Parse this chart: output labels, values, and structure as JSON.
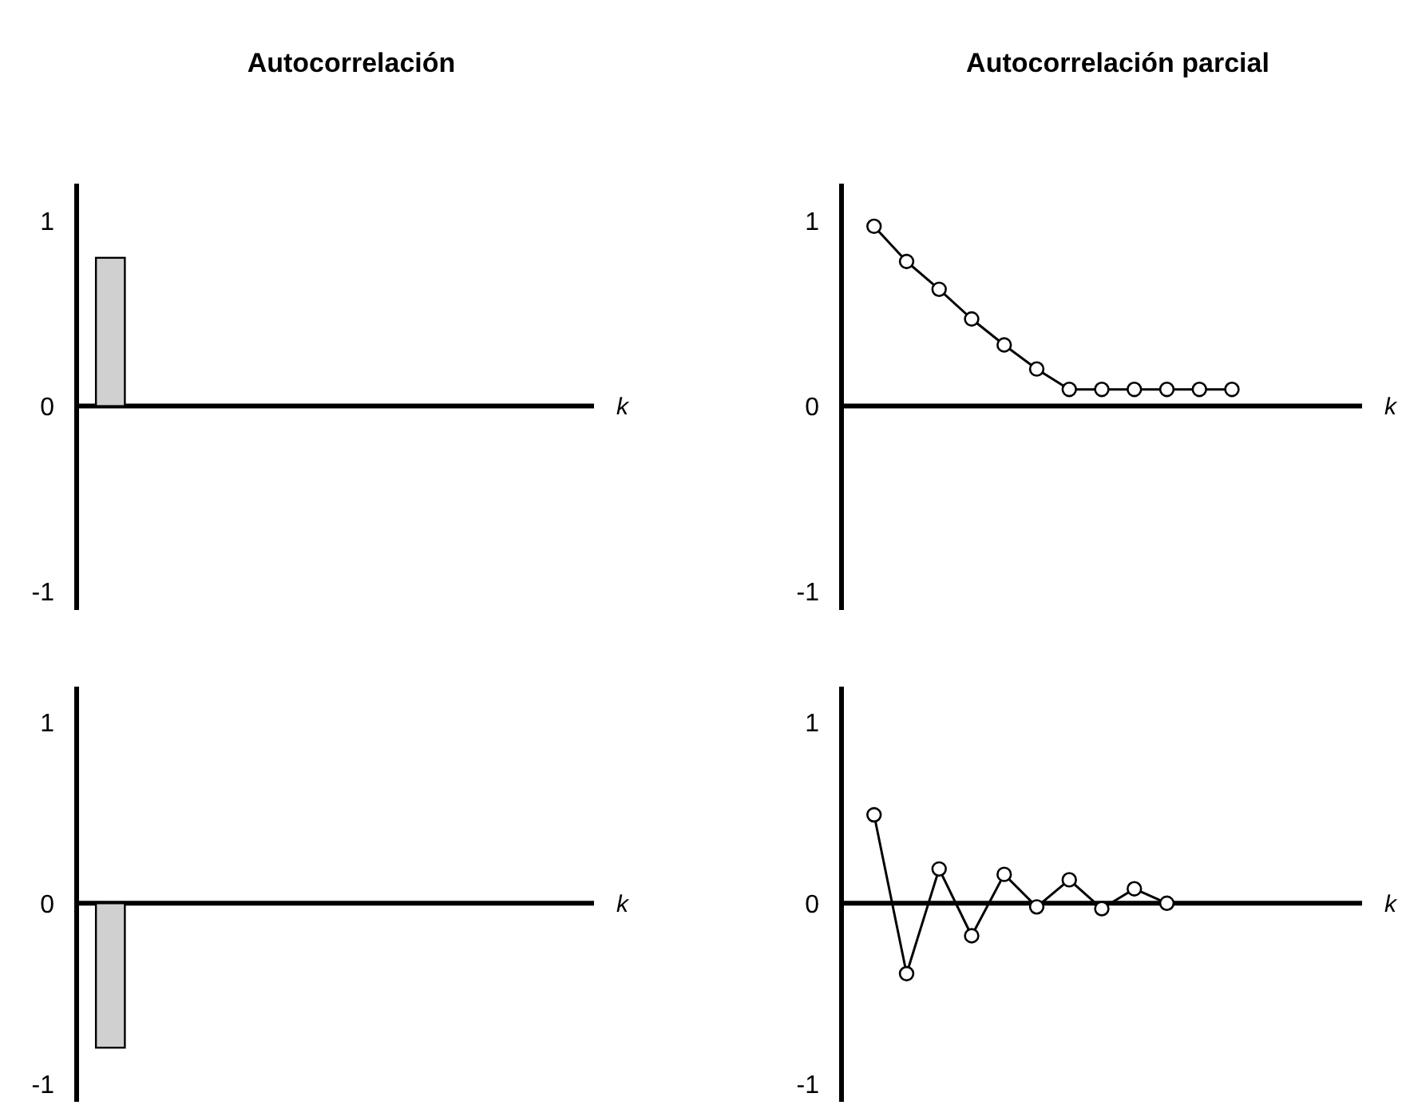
{
  "chart_data": [
    {
      "type": "bar",
      "title": "Autocorrelación",
      "xlabel": "k",
      "categories": [
        null,
        null,
        null,
        null,
        null,
        null,
        null,
        null
      ],
      "values": [
        0.8,
        null,
        null,
        null,
        null,
        null,
        null,
        null
      ],
      "color": "#d0d0d0",
      "ylim": [
        -1.1,
        1.2
      ],
      "yticks": [
        -1,
        0,
        1
      ],
      "tick_labels": "y"
    },
    {
      "type": "line",
      "title": "Autocorrelación parcial",
      "xlabel": "k",
      "categories": [
        null,
        null,
        null,
        null,
        null,
        null,
        null,
        null,
        null,
        null,
        null,
        null,
        null,
        null,
        null
      ],
      "values": [
        0.97,
        0.78,
        0.63,
        0.47,
        0.33,
        0.2,
        0.09,
        0.09,
        0.09,
        0.09,
        0.09,
        0.09,
        null,
        null,
        null
      ],
      "color": "#000000",
      "marker": "circle",
      "ylim": [
        -1.1,
        1.2
      ],
      "yticks": [
        -1,
        0,
        1
      ],
      "tick_labels": "y"
    },
    {
      "type": "bar",
      "xlabel": "k",
      "categories": [
        null,
        null,
        null,
        null,
        null,
        null,
        null,
        null
      ],
      "values": [
        -0.8,
        null,
        null,
        null,
        null,
        null,
        null,
        null
      ],
      "color": "#d0d0d0",
      "ylim": [
        -1.1,
        1.2
      ],
      "yticks": [
        -1,
        0,
        1
      ],
      "tick_labels": "y"
    },
    {
      "type": "line",
      "xlabel": "k",
      "categories": [
        null,
        null,
        null,
        null,
        null,
        null,
        null,
        null,
        null,
        null,
        null,
        null,
        null,
        null,
        null
      ],
      "values": [
        0.49,
        -0.39,
        0.19,
        -0.18,
        0.16,
        -0.02,
        0.13,
        -0.03,
        0.08,
        0.0,
        null,
        null,
        null,
        null,
        null
      ],
      "color": "#000000",
      "marker": "circle",
      "ylim": [
        -1.1,
        1.2
      ],
      "yticks": [
        -1,
        0,
        1
      ],
      "tick_labels": "y"
    }
  ]
}
